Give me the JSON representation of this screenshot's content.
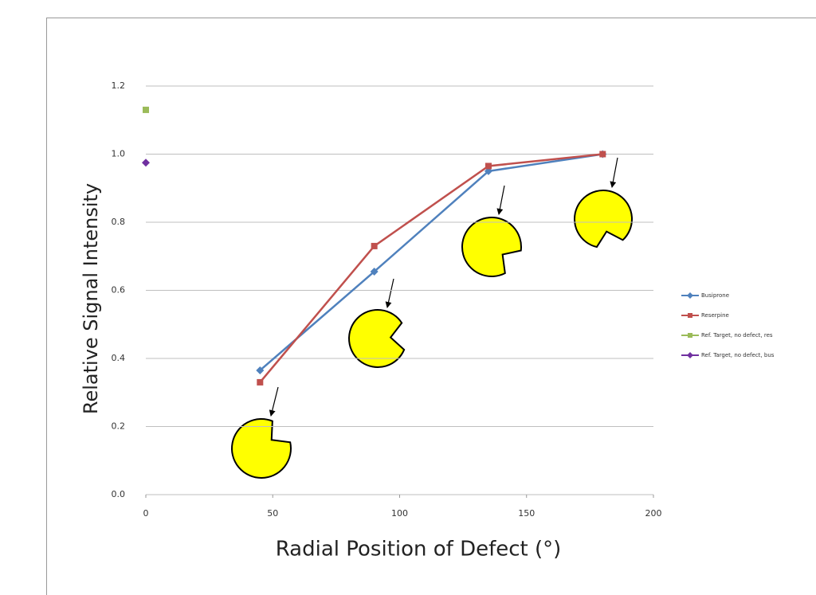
{
  "chart_data": {
    "type": "line",
    "x_label": "Radial Position of Defect (°)",
    "y_label": "Relative Signal Intensity",
    "xlim": [
      0,
      200
    ],
    "xticks": [
      0,
      50,
      100,
      150,
      200
    ],
    "ylim": [
      0,
      1.2
    ],
    "yticks": [
      {
        "value": 0,
        "label": "0.0"
      },
      0.2,
      0.4,
      0.6,
      0.8,
      {
        "value": 1,
        "label": "1.0"
      },
      1.2
    ],
    "grid": true,
    "legend": "right",
    "series": [
      {
        "name": "Busiprone",
        "color": "#4f81bd",
        "marker": "diamond",
        "x": [
          45,
          90,
          135,
          180
        ],
        "values": [
          0.365,
          0.655,
          0.95,
          1.0
        ]
      },
      {
        "name": "Reserpine",
        "color": "#c0504d",
        "marker": "square",
        "x": [
          45,
          90,
          135,
          180
        ],
        "values": [
          0.33,
          0.73,
          0.965,
          1.0
        ]
      },
      {
        "name": "Ref. Target,  no defect, res",
        "color": "#9bbb59",
        "marker": "square",
        "x": [
          0
        ],
        "values": [
          1.13
        ]
      },
      {
        "name": "Ref. Target,  no defect, bus",
        "color": "#7030a0",
        "marker": "diamond",
        "x": [
          0
        ],
        "values": [
          0.975
        ]
      }
    ]
  }
}
